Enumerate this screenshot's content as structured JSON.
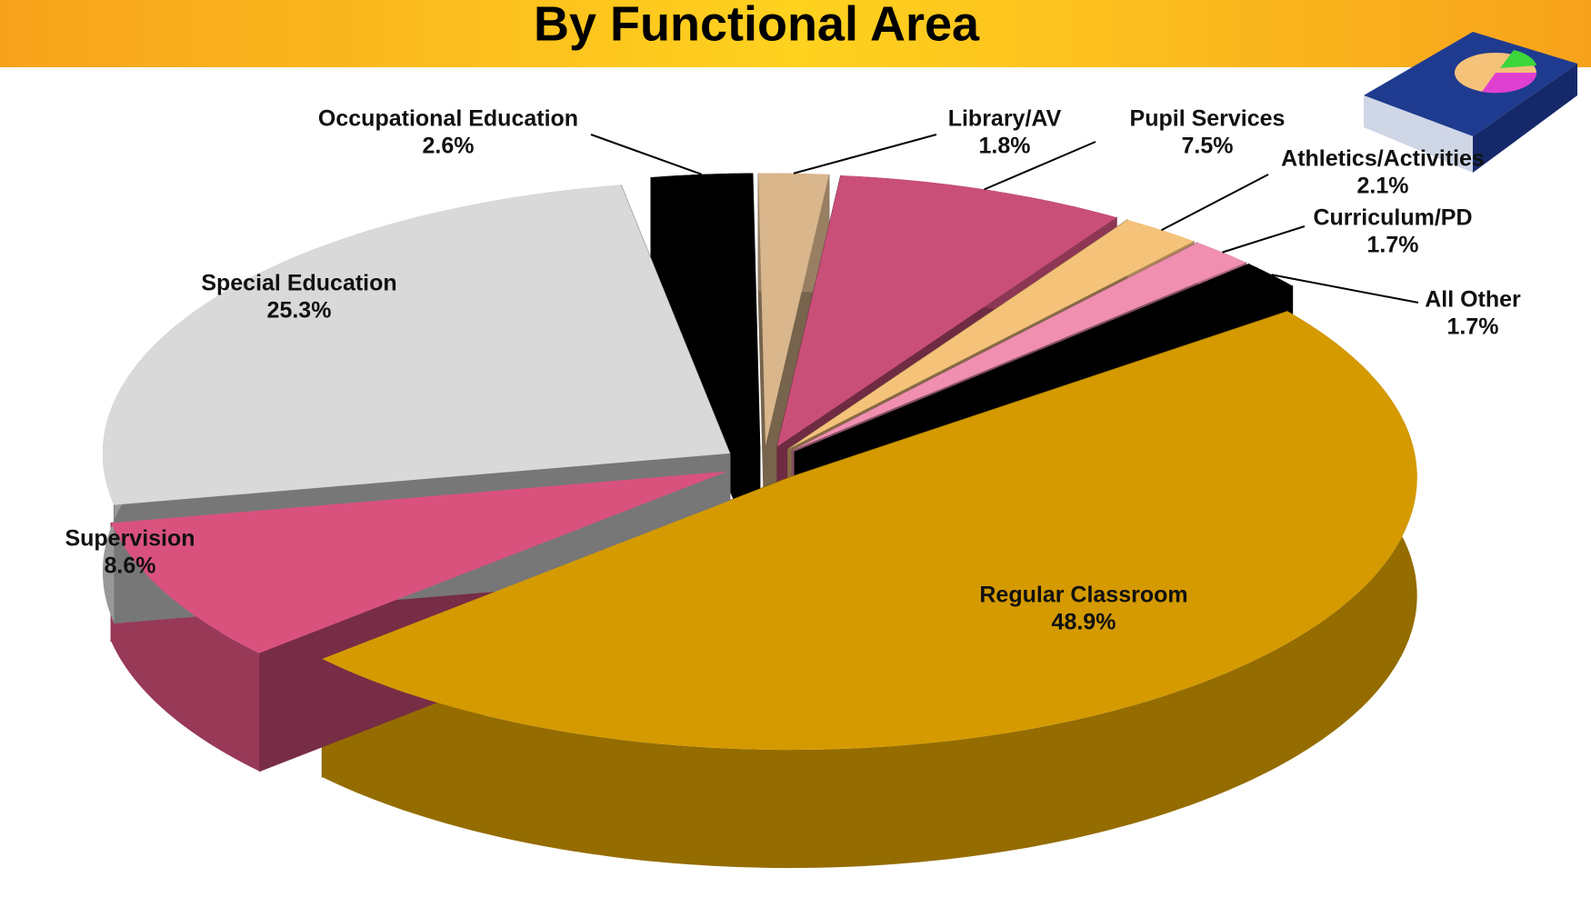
{
  "chart_data": {
    "type": "pie",
    "title": "By Functional Area",
    "categories": [
      "Occupational Education",
      "Library/AV",
      "Pupil Services",
      "Athletics/Activities",
      "Curriculum/PD",
      "All Other",
      "Regular Classroom",
      "Supervision",
      "Special Education"
    ],
    "values": [
      2.6,
      1.8,
      7.5,
      2.1,
      1.7,
      1.7,
      48.9,
      8.6,
      25.3
    ],
    "value_labels": [
      "2.6%",
      "1.8%",
      "7.5%",
      "2.1%",
      "1.7%",
      "1.7%",
      "48.9%",
      "8.6%",
      "25.3%"
    ],
    "colors": [
      "#000000",
      "#d9b68c",
      "#c94f78",
      "#f5c27a",
      "#f08fb0",
      "#000000",
      "#d49a00",
      "#d9527e",
      "#d9d9d9"
    ]
  }
}
